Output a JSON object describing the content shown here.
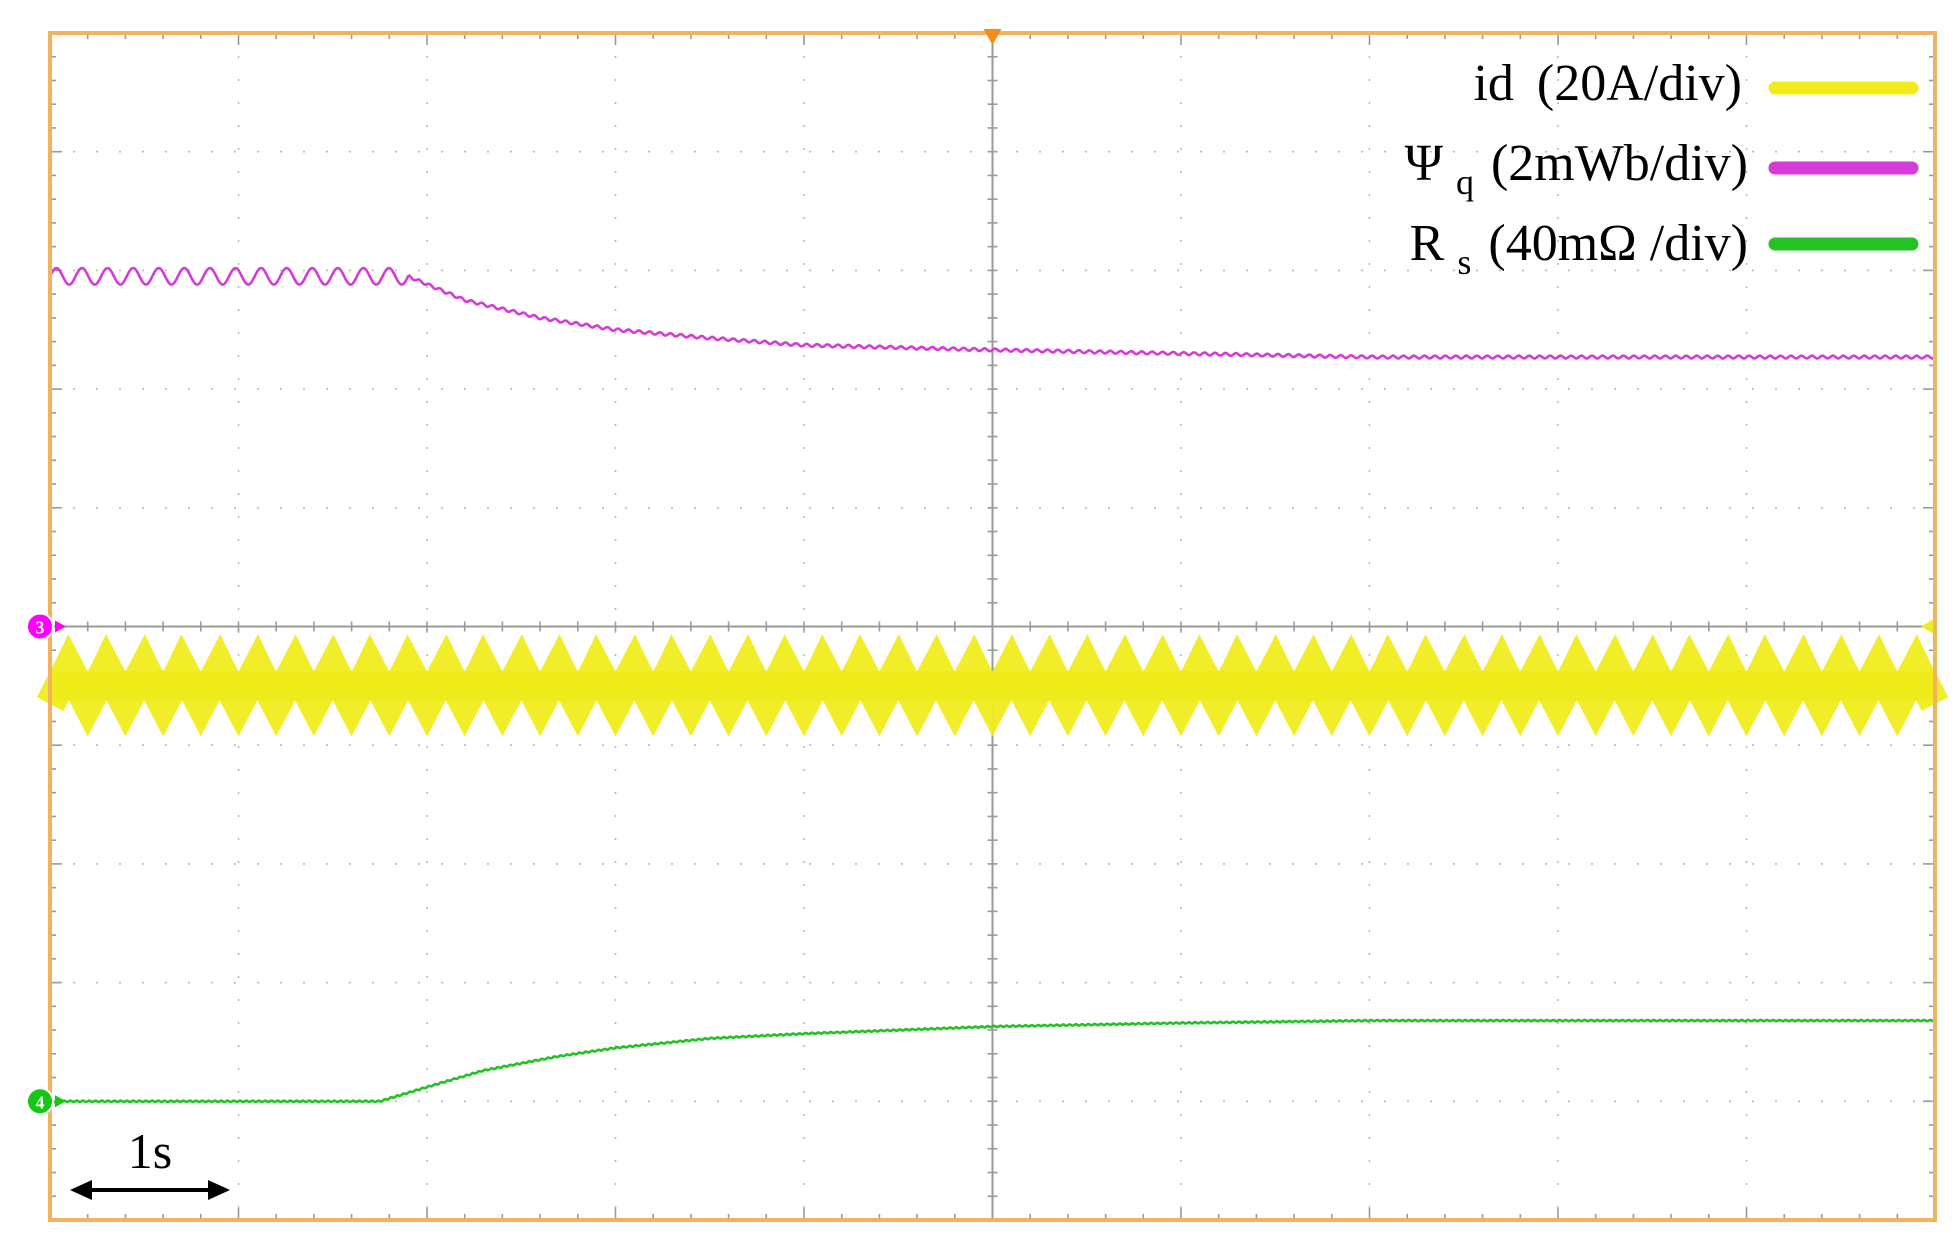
{
  "chart_data": {
    "type": "line",
    "title": "",
    "grid": true,
    "legend_position": "top-right",
    "x_divisions": 10,
    "y_divisions": 10,
    "x_range_s": [
      0,
      10
    ],
    "time_scale_label": "1s",
    "frame_color": "#f2b35c",
    "channel_markers": [
      {
        "label": "3",
        "color": "#ff00ff",
        "level_div": 5.0
      },
      {
        "label": "4",
        "color": "#12c812",
        "level_div": 1.0
      }
    ],
    "series": [
      {
        "name": "id",
        "scale_label": "(20A/div)",
        "color": "#f0ec1c",
        "kind": "band",
        "center_div": 4.5,
        "half_amplitude_div": 0.28,
        "cycles": 50,
        "x": [
          0,
          10
        ],
        "y": [
          4.5,
          4.5
        ]
      },
      {
        "name": "Ψ",
        "sub": "q",
        "scale_label": "(2mWb/div)",
        "color": "#d63bd6",
        "kind": "line",
        "ripple_div": 0.07,
        "ripple_until_s": 1.9,
        "ripple_cycles": 14,
        "x": [
          0,
          1.9,
          2.2,
          2.6,
          3.0,
          3.5,
          4.0,
          5.0,
          6.0,
          7.0,
          8.0,
          9.0,
          10.0
        ],
        "y": [
          7.95,
          7.95,
          7.75,
          7.6,
          7.5,
          7.43,
          7.37,
          7.33,
          7.3,
          7.27,
          7.27,
          7.27,
          7.27
        ]
      },
      {
        "name": "R",
        "sub": "s",
        "scale_label": "(40mΩ /div)",
        "color": "#25c225",
        "kind": "line",
        "x": [
          0,
          1.75,
          2.0,
          2.3,
          2.7,
          3.0,
          3.5,
          4.0,
          4.5,
          5.0,
          6.0,
          7.0,
          8.0,
          9.0,
          10.0
        ],
        "y": [
          1.0,
          1.0,
          1.12,
          1.26,
          1.38,
          1.45,
          1.53,
          1.57,
          1.6,
          1.63,
          1.66,
          1.68,
          1.68,
          1.68,
          1.68
        ]
      }
    ]
  }
}
